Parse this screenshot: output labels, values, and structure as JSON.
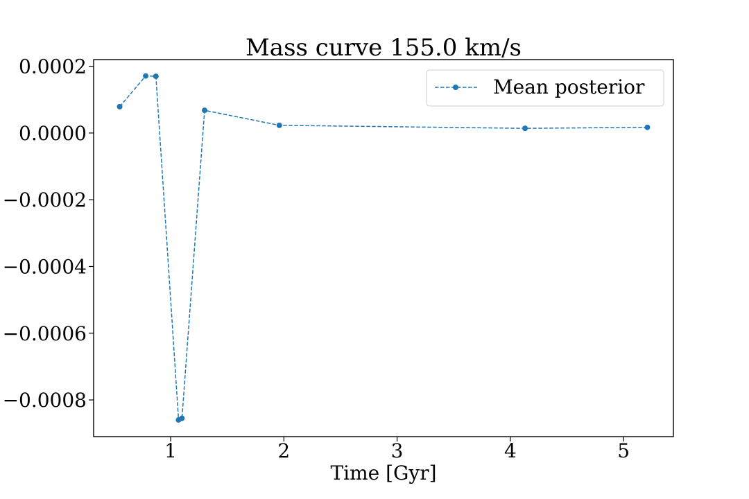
{
  "chart_data": {
    "type": "line",
    "title": "Mass curve 155.0 km/s",
    "xlabel": "Time [Gyr]",
    "ylabel": "",
    "xlim": [
      0.32,
      5.44
    ],
    "ylim": [
      -0.00091,
      0.00022
    ],
    "x_ticks": [
      1,
      2,
      3,
      4,
      5
    ],
    "x_tick_labels": [
      "1",
      "2",
      "3",
      "4",
      "5"
    ],
    "y_ticks": [
      0.0002,
      0.0,
      -0.0002,
      -0.0004,
      -0.0006,
      -0.0008
    ],
    "y_tick_labels": [
      "0.0002",
      "0.0000",
      "−0.0002",
      "−0.0004",
      "−0.0006",
      "−0.0008"
    ],
    "grid": false,
    "legend_position": "top-right",
    "series": [
      {
        "name": "Mean posterior",
        "color": "#1f77b4",
        "line_style": "dashed",
        "marker": "circle",
        "x": [
          0.55,
          0.78,
          0.87,
          1.07,
          1.1,
          1.3,
          1.96,
          4.13,
          5.21
        ],
        "y": [
          7.9e-05,
          0.000171,
          0.00017,
          -0.00086,
          -0.000855,
          6.8e-05,
          2.3e-05,
          1.4e-05,
          1.7e-05
        ]
      }
    ]
  }
}
